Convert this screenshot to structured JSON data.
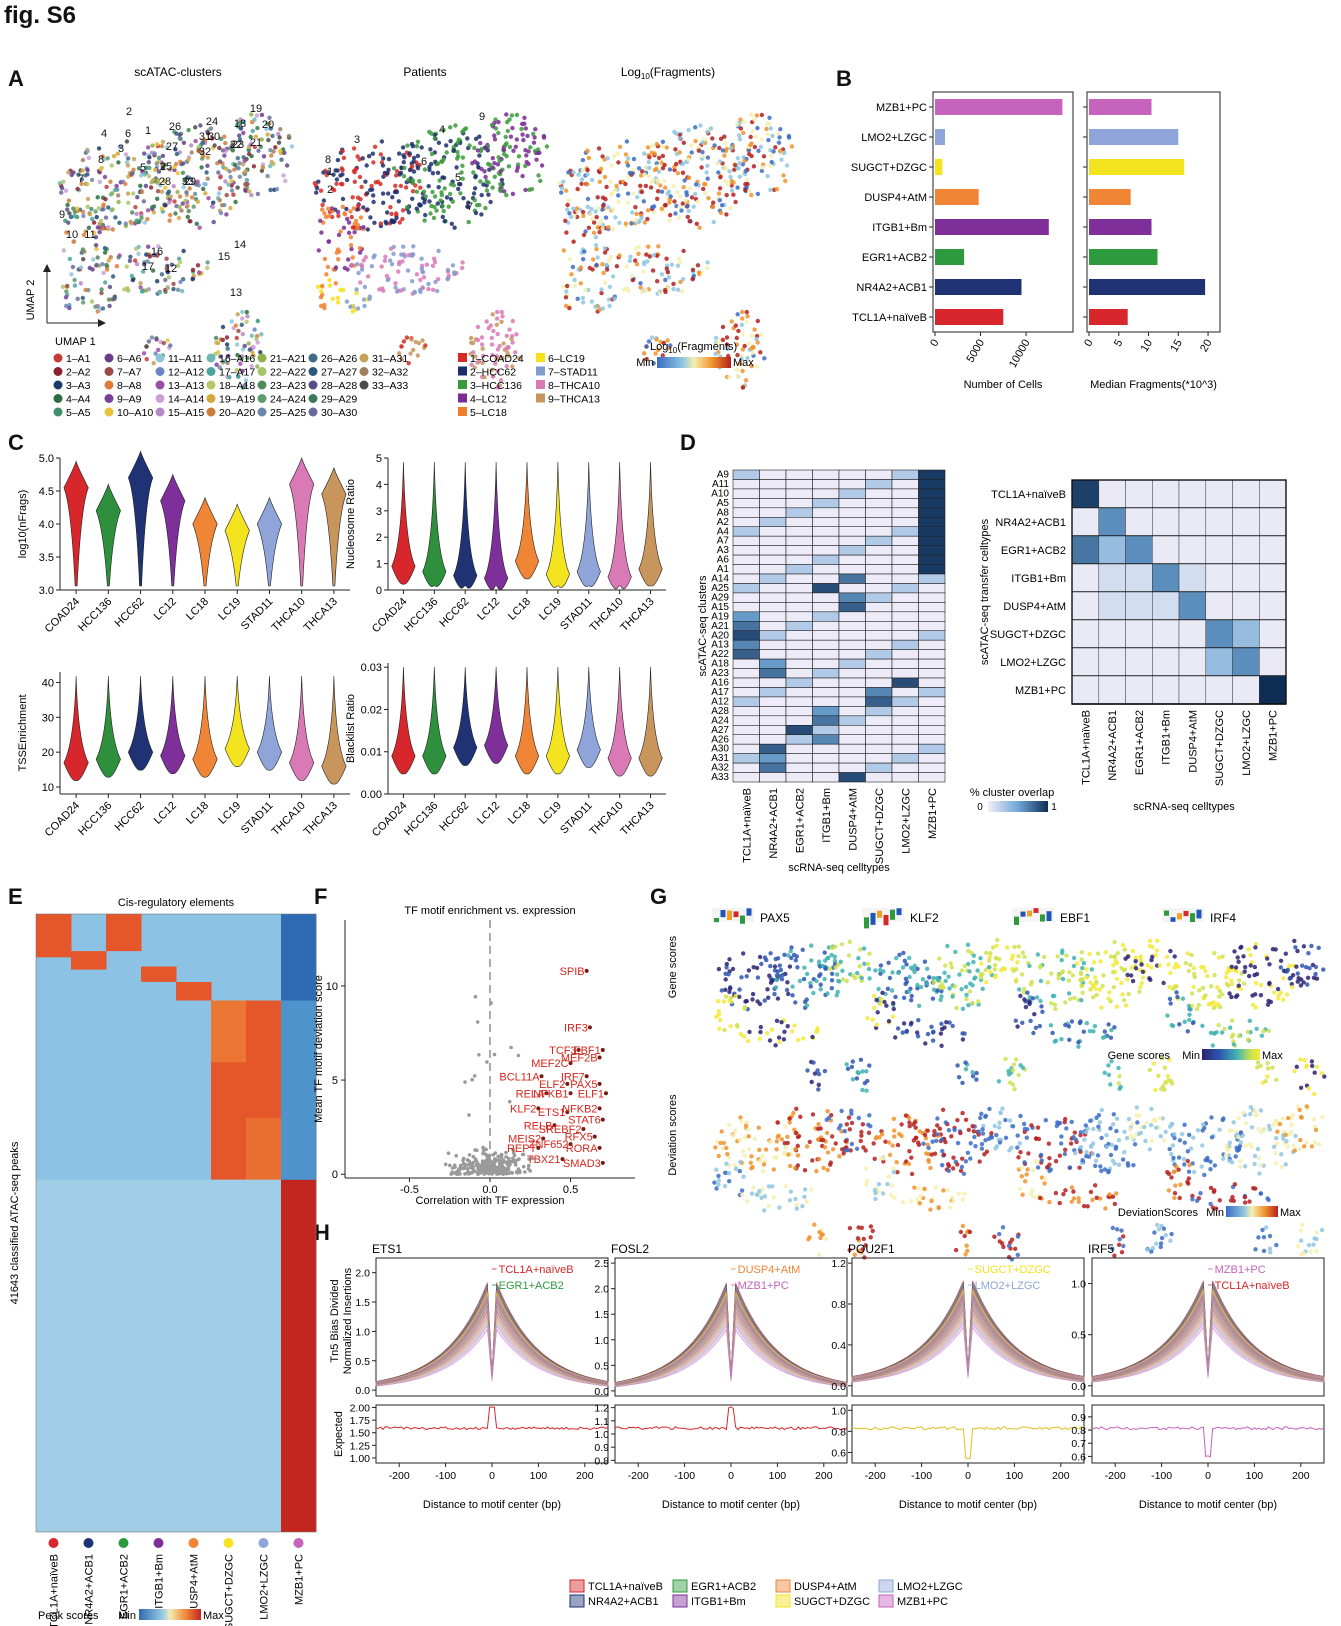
{
  "figure_label": "fig. S6",
  "panel_labels": [
    "A",
    "B",
    "C",
    "D",
    "E",
    "F",
    "G",
    "H"
  ],
  "colors": {
    "celltypes": {
      "TCL1A+naïveB": "#d7262c",
      "NR4A2+ACB1": "#1f3274",
      "EGR1+ACB2": "#2e9a3e",
      "ITGB1+Bm": "#7e2f9a",
      "DUSP4+AtM": "#f08535",
      "SUGCT+DZGC": "#f4e31f",
      "LMO2+LZGC": "#8fa4d8",
      "MZB1+PC": "#c563bd"
    },
    "patients": [
      "#d62a26",
      "#1c2d6b",
      "#3a9a3a",
      "#7a2a93",
      "#f07f2b",
      "#f5e21a",
      "#7f9ccf",
      "#d979b6",
      "#c8955c"
    ]
  },
  "panelA": {
    "titles": [
      "scATAC-clusters",
      "Patients",
      "Log10(Fragments)"
    ],
    "axis_x": "UMAP 1",
    "axis_y": "UMAP 2",
    "umap_cluster_labels": [
      "1",
      "2",
      "3",
      "4",
      "5",
      "6",
      "7",
      "8",
      "9",
      "10",
      "11",
      "12",
      "13",
      "14",
      "15",
      "16",
      "17",
      "18",
      "19",
      "20",
      "21",
      "22",
      "23",
      "24",
      "25",
      "26",
      "27",
      "28",
      "29",
      "30",
      "31",
      "32",
      "33"
    ],
    "umap_patient_labels": [
      "1",
      "2",
      "3",
      "4",
      "5",
      "6",
      "7",
      "8",
      "9"
    ],
    "cluster_legend": [
      "1–A1",
      "2–A2",
      "3–A3",
      "4–A4",
      "5–A5",
      "6–A6",
      "7–A7",
      "8–A8",
      "9–A9",
      "10–A10",
      "11–A11",
      "12–A12",
      "13–A13",
      "14–A14",
      "15–A15",
      "16–A16",
      "17–A17",
      "18–A18",
      "19–A19",
      "20–A20",
      "21–A21",
      "22–A22",
      "23–A23",
      "24–A24",
      "25–A25",
      "26–A26",
      "27–A27",
      "28–A28",
      "29–A29",
      "30–A30",
      "31–A31",
      "32–A32",
      "33–A33"
    ],
    "cluster_colors": [
      "#c43a3a",
      "#8a2230",
      "#1d3a6b",
      "#2b6e3e",
      "#3e8f6a",
      "#6a3b8e",
      "#9b4a4a",
      "#e07a3a",
      "#7b3f9a",
      "#e8c23a",
      "#8ec6d8",
      "#6b86c4",
      "#9b4fa3",
      "#c9a0d6",
      "#b887c4",
      "#6fb7b2",
      "#4aa5a0",
      "#b2c86a",
      "#d3a83a",
      "#c97f3a",
      "#8fb04a",
      "#a7c46a",
      "#4f8a5a",
      "#5e9b6a",
      "#6a8aa5",
      "#3f6a8a",
      "#2c5a7a",
      "#5a4a8a",
      "#3a7a5a",
      "#6a6a9a",
      "#c7a05a",
      "#a08060",
      "#4a4a4a"
    ],
    "patient_legend": [
      "1–COAD24",
      "2–HCC62",
      "3–HCC136",
      "4–LC12",
      "5–LC18",
      "6–LC19",
      "7–STAD11",
      "8–THCA10",
      "9–THCA13"
    ],
    "frag_legend": {
      "title": "Log10(Fragments)",
      "min": "Min",
      "max": "Max"
    }
  },
  "panelB": {
    "celltypes": [
      "MZB1+PC",
      "LMO2+LZGC",
      "SUGCT+DZGC",
      "DUSP4+AtM",
      "ITGB1+Bm",
      "EGR1+ACB2",
      "NR4A2+ACB1",
      "TCL1A+naïveB"
    ],
    "colors": [
      "#c563bd",
      "#8fa4d8",
      "#f4e31f",
      "#f08535",
      "#7e2f9a",
      "#2e9a3e",
      "#1f3274",
      "#d7262c"
    ]
  },
  "panelC": {
    "categories": [
      "COAD24",
      "HCC136",
      "HCC62",
      "LC12",
      "LC18",
      "LC19",
      "STAD11",
      "THCA10",
      "THCA13"
    ],
    "colors": [
      "#d7262c",
      "#2e8f3c",
      "#1f3274",
      "#7e2f9a",
      "#f08535",
      "#f4e31f",
      "#8fa4d8",
      "#d979b6",
      "#c8955c"
    ],
    "log10_nFrags_median": [
      4.55,
      4.2,
      4.7,
      4.35,
      4.0,
      3.9,
      4.0,
      4.6,
      4.45
    ],
    "nucleosome_ratio_median": [
      0.9,
      0.7,
      0.55,
      0.45,
      1.1,
      0.6,
      0.7,
      0.5,
      0.8
    ],
    "tss_enrichment_median": [
      17,
      18,
      20,
      19,
      18,
      21,
      20,
      17,
      16
    ],
    "blacklist_ratio_median": [
      0.009,
      0.009,
      0.011,
      0.0115,
      0.009,
      0.009,
      0.0105,
      0.0085,
      0.0085
    ]
  },
  "panelD": {
    "left_rows": [
      "A9",
      "A11",
      "A10",
      "A5",
      "A8",
      "A2",
      "A4",
      "A7",
      "A3",
      "A6",
      "A1",
      "A14",
      "A25",
      "A29",
      "A15",
      "A19",
      "A21",
      "A20",
      "A13",
      "A22",
      "A18",
      "A23",
      "A16",
      "A17",
      "A12",
      "A28",
      "A24",
      "A27",
      "A26",
      "A30",
      "A31",
      "A32",
      "A33"
    ],
    "left_cols": [
      "TCL1A+naïveB",
      "NR4A2+ACB1",
      "EGR1+ACB2",
      "ITGB1+Bm",
      "DUSP4+AtM",
      "SUGCT+DZGC",
      "LMO2+LZGC",
      "MZB1+PC"
    ],
    "left_ylabel": "scATAC-seq clusters",
    "left_xlabel": "scRNA-seq celltypes",
    "right_rows": [
      "TCL1A+naïveB",
      "NR4A2+ACB1",
      "EGR1+ACB2",
      "ITGB1+Bm",
      "DUSP4+AtM",
      "SUGCT+DZGC",
      "LMO2+LZGC",
      "MZB1+PC"
    ],
    "right_cols": [
      "TCL1A+naïveB",
      "NR4A2+ACB1",
      "EGR1+ACB2",
      "ITGB1+Bm",
      "DUSP4+AtM",
      "SUGCT+DZGC",
      "LMO2+LZGC",
      "MZB1+PC"
    ],
    "right_ylabel": "scATAC-seq transfer celltypes",
    "right_xlabel": "scRNA-seq celltypes",
    "legend_title": "% cluster overlap",
    "legend_min": "0",
    "legend_max": "1"
  },
  "panelE": {
    "title": "Cis-regulatory elements",
    "ylabel": "41643 classified ATAC-seq peaks",
    "columns": [
      "TCL1A+naïveB",
      "NR4A2+ACB1",
      "EGR1+ACB2",
      "ITGB1+Bm",
      "DUSP4+AtM",
      "SUGCT+DZGC",
      "LMO2+LZGC",
      "MZB1+PC"
    ],
    "legend_title": "Peak scores",
    "legend_min": "Min",
    "legend_max": "Max"
  },
  "panelF": {
    "title": "TF motif enrichment vs. expression",
    "xlabel": "Correlation with TF expression",
    "ylabel": "Mean TF motif deviation score",
    "highlight_color": "#d8251d"
  },
  "panelG": {
    "tfs": [
      "PAX5",
      "KLF2",
      "EBF1",
      "IRF4"
    ],
    "row_labels": [
      "Gene scores",
      "Deviation scores"
    ],
    "gene_legend": {
      "title": "Gene scores",
      "min": "Min",
      "max": "Max"
    },
    "dev_legend": {
      "title": "DeviationScores",
      "min": "Min",
      "max": "Max"
    }
  },
  "panelH": {
    "tfs": [
      "ETS1",
      "FOSL2",
      "POU2F1",
      "IRF5"
    ],
    "ylabel_top1": "Tn5 Bias Divided",
    "ylabel_top2": "Normalized Insertions",
    "ylabel_bottom": "Expected",
    "xlabel": "Distance to motif center (bp)",
    "legend": [
      "TCL1A+naïveB",
      "NR4A2+ACB1",
      "EGR1+ACB2",
      "ITGB1+Bm",
      "DUSP4+AtM",
      "SUGCT+DZGC",
      "LMO2+LZGC",
      "MZB1+PC"
    ]
  },
  "chart_data": [
    {
      "type": "bar",
      "title": "",
      "xlabel": "Number of Cells",
      "categories": [
        "MZB1+PC",
        "LMO2+LZGC",
        "SUGCT+DZGC",
        "DUSP4+AtM",
        "ITGB1+Bm",
        "EGR1+ACB2",
        "NR4A2+ACB1",
        "TCL1A+naïveB"
      ],
      "values": [
        14000,
        1100,
        800,
        4800,
        12500,
        3200,
        9500,
        7500
      ],
      "xticks": [
        0,
        5000,
        10000
      ],
      "xlim": [
        0,
        14500
      ]
    },
    {
      "type": "bar",
      "title": "",
      "xlabel": "Median Fragments(*10^3)",
      "categories": [
        "MZB1+PC",
        "LMO2+LZGC",
        "SUGCT+DZGC",
        "DUSP4+AtM",
        "ITGB1+Bm",
        "EGR1+ACB2",
        "NR4A2+ACB1",
        "TCL1A+naïveB"
      ],
      "values": [
        10.5,
        15,
        16,
        7,
        10.5,
        11.5,
        19.5,
        6.5
      ],
      "xticks": [
        0,
        5,
        10,
        15,
        20
      ],
      "xlim": [
        0,
        21
      ]
    },
    {
      "type": "scatter",
      "title": "TF motif enrichment vs. expression",
      "xlabel": "Correlation with TF expression",
      "ylabel": "Mean TF motif deviation score",
      "xticks": [
        -0.5,
        0.0,
        0.5
      ],
      "yticks": [
        0,
        5,
        10
      ],
      "xlim": [
        -0.9,
        0.9
      ],
      "ylim": [
        -0.2,
        13.5
      ],
      "labeled_points": [
        {
          "label": "SPIB",
          "x": 0.6,
          "y": 10.8
        },
        {
          "label": "IRF3",
          "x": 0.62,
          "y": 7.8
        },
        {
          "label": "TCF3",
          "x": 0.55,
          "y": 6.6
        },
        {
          "label": "EBF1",
          "x": 0.7,
          "y": 6.6
        },
        {
          "label": "MEF2B",
          "x": 0.68,
          "y": 6.2
        },
        {
          "label": "MEF2C",
          "x": 0.5,
          "y": 5.9
        },
        {
          "label": "BCL11A",
          "x": 0.32,
          "y": 5.2
        },
        {
          "label": "IRF7",
          "x": 0.6,
          "y": 5.2
        },
        {
          "label": "ELF2",
          "x": 0.48,
          "y": 4.8
        },
        {
          "label": "PAX5",
          "x": 0.68,
          "y": 4.8
        },
        {
          "label": "RELA",
          "x": 0.35,
          "y": 4.3
        },
        {
          "label": "NFKB1",
          "x": 0.5,
          "y": 4.3
        },
        {
          "label": "ELF1",
          "x": 0.72,
          "y": 4.3
        },
        {
          "label": "KLF2",
          "x": 0.3,
          "y": 3.5
        },
        {
          "label": "ETS1",
          "x": 0.48,
          "y": 3.3
        },
        {
          "label": "NFKB2",
          "x": 0.68,
          "y": 3.5
        },
        {
          "label": "STAT6",
          "x": 0.7,
          "y": 2.9
        },
        {
          "label": "RELB",
          "x": 0.4,
          "y": 2.6
        },
        {
          "label": "SREBF2",
          "x": 0.58,
          "y": 2.4
        },
        {
          "label": "MEIS2",
          "x": 0.33,
          "y": 1.9
        },
        {
          "label": "ZNF652",
          "x": 0.5,
          "y": 1.6
        },
        {
          "label": "RFX5",
          "x": 0.65,
          "y": 2.0
        },
        {
          "label": "REPT",
          "x": 0.3,
          "y": 1.4
        },
        {
          "label": "RORA",
          "x": 0.68,
          "y": 1.4
        },
        {
          "label": "TBX21",
          "x": 0.45,
          "y": 0.8
        },
        {
          "label": "SMAD3",
          "x": 0.7,
          "y": 0.6
        }
      ]
    }
  ]
}
